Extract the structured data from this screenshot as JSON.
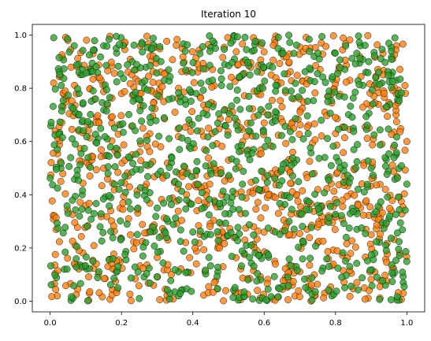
{
  "chart_data": {
    "type": "scatter",
    "title": "Iteration 10",
    "xlabel": "",
    "ylabel": "",
    "xlim": [
      -0.05,
      1.05
    ],
    "ylim": [
      -0.04,
      1.04
    ],
    "x_ticks": [
      0.0,
      0.2,
      0.4,
      0.6,
      0.8,
      1.0
    ],
    "y_ticks": [
      0.0,
      0.2,
      0.4,
      0.6,
      0.8,
      1.0
    ],
    "x_tick_labels": [
      "0.0",
      "0.2",
      "0.4",
      "0.6",
      "0.8",
      "1.0"
    ],
    "y_tick_labels": [
      "0.0",
      "0.2",
      "0.4",
      "0.6",
      "0.8",
      "1.0"
    ],
    "grid": false,
    "legend": false,
    "point_count_approx": 1800,
    "marker_edge_color": "#000000",
    "alpha": 0.8,
    "series": [
      {
        "color": "#ff7f0e",
        "points": [
          [
            0.02,
            0.02
          ],
          [
            0.05,
            0.98
          ],
          [
            0.08,
            0.64
          ],
          [
            0.1,
            0.36
          ],
          [
            0.12,
            0.93
          ],
          [
            0.15,
            0.5
          ],
          [
            0.18,
            0.12
          ],
          [
            0.2,
            0.78
          ],
          [
            0.22,
            0.31
          ],
          [
            0.24,
            0.87
          ],
          [
            0.27,
            0.44
          ],
          [
            0.29,
            0.06
          ],
          [
            0.31,
            0.58
          ],
          [
            0.33,
            0.23
          ],
          [
            0.35,
            0.71
          ],
          [
            0.37,
            0.95
          ],
          [
            0.39,
            0.37
          ],
          [
            0.41,
            0.14
          ],
          [
            0.43,
            0.62
          ],
          [
            0.46,
            0.81
          ],
          [
            0.48,
            0.29
          ],
          [
            0.5,
            0.53
          ],
          [
            0.52,
            0.04
          ],
          [
            0.54,
            0.9
          ],
          [
            0.56,
            0.41
          ],
          [
            0.58,
            0.19
          ],
          [
            0.6,
            0.67
          ],
          [
            0.62,
            0.85
          ],
          [
            0.64,
            0.33
          ],
          [
            0.66,
            0.09
          ],
          [
            0.68,
            0.56
          ],
          [
            0.7,
            0.76
          ],
          [
            0.72,
            0.27
          ],
          [
            0.74,
            0.48
          ],
          [
            0.76,
            0.97
          ],
          [
            0.78,
            0.16
          ],
          [
            0.8,
            0.63
          ],
          [
            0.82,
            0.38
          ],
          [
            0.84,
            0.83
          ],
          [
            0.86,
            0.07
          ],
          [
            0.88,
            0.52
          ],
          [
            0.9,
            0.25
          ],
          [
            0.92,
            0.74
          ],
          [
            0.94,
            0.42
          ],
          [
            0.96,
            0.91
          ],
          [
            0.98,
            0.18
          ],
          [
            1.0,
            0.6
          ],
          [
            0.03,
            0.45
          ],
          [
            0.07,
            0.21
          ],
          [
            0.13,
            0.69
          ],
          [
            0.17,
            0.34
          ],
          [
            0.23,
            0.55
          ],
          [
            0.28,
            0.92
          ],
          [
            0.34,
            0.1
          ],
          [
            0.44,
            0.47
          ],
          [
            0.49,
            0.72
          ],
          [
            0.57,
            0.99
          ],
          [
            0.63,
            0.15
          ],
          [
            0.69,
            0.4
          ],
          [
            0.75,
            0.22
          ],
          [
            0.81,
            0.88
          ],
          [
            0.87,
            0.35
          ],
          [
            0.93,
            0.59
          ],
          [
            0.99,
            0.03
          ],
          [
            0.01,
            0.82
          ],
          [
            0.11,
            0.03
          ],
          [
            0.26,
            0.65
          ],
          [
            0.36,
            0.8
          ],
          [
            0.47,
            0.2
          ],
          [
            0.55,
            0.62
          ],
          [
            0.65,
            0.73
          ],
          [
            0.73,
            0.05
          ],
          [
            0.83,
            0.45
          ],
          [
            0.91,
            0.11
          ],
          [
            0.97,
            0.78
          ]
        ]
      },
      {
        "color": "#2ca02c",
        "points": [
          [
            0.01,
            0.99
          ],
          [
            0.04,
            0.12
          ],
          [
            0.06,
            0.73
          ],
          [
            0.09,
            0.4
          ],
          [
            0.11,
            0.86
          ],
          [
            0.14,
            0.28
          ],
          [
            0.16,
            0.61
          ],
          [
            0.19,
            0.05
          ],
          [
            0.21,
            0.47
          ],
          [
            0.23,
            0.9
          ],
          [
            0.26,
            0.17
          ],
          [
            0.28,
            0.69
          ],
          [
            0.3,
            0.35
          ],
          [
            0.32,
            0.83
          ],
          [
            0.34,
            0.52
          ],
          [
            0.36,
            0.02
          ],
          [
            0.38,
            0.74
          ],
          [
            0.4,
            0.26
          ],
          [
            0.42,
            0.93
          ],
          [
            0.45,
            0.49
          ],
          [
            0.47,
            0.11
          ],
          [
            0.49,
            0.66
          ],
          [
            0.51,
            0.39
          ],
          [
            0.53,
            0.84
          ],
          [
            0.55,
            0.21
          ],
          [
            0.57,
            0.57
          ],
          [
            0.59,
            0.08
          ],
          [
            0.61,
            0.7
          ],
          [
            0.63,
            0.46
          ],
          [
            0.65,
            0.94
          ],
          [
            0.67,
            0.3
          ],
          [
            0.69,
            0.13
          ],
          [
            0.71,
            0.61
          ],
          [
            0.73,
            0.87
          ],
          [
            0.75,
            0.36
          ],
          [
            0.77,
            0.54
          ],
          [
            0.79,
            0.02
          ],
          [
            0.81,
            0.77
          ],
          [
            0.83,
            0.24
          ],
          [
            0.85,
            0.65
          ],
          [
            0.87,
            0.96
          ],
          [
            0.89,
            0.43
          ],
          [
            0.91,
            0.18
          ],
          [
            0.93,
            0.82
          ],
          [
            0.95,
            0.31
          ],
          [
            0.97,
            0.55
          ],
          [
            0.99,
            0.07
          ],
          [
            0.02,
            0.57
          ],
          [
            0.08,
            0.89
          ],
          [
            0.12,
            0.15
          ],
          [
            0.18,
            0.44
          ],
          [
            0.24,
            0.76
          ],
          [
            0.33,
            0.3
          ],
          [
            0.39,
            0.58
          ],
          [
            0.46,
            0.97
          ],
          [
            0.52,
            0.24
          ],
          [
            0.58,
            0.79
          ],
          [
            0.64,
            0.05
          ],
          [
            0.7,
            0.33
          ],
          [
            0.76,
            0.68
          ],
          [
            0.84,
            0.13
          ],
          [
            0.9,
            0.5
          ],
          [
            0.96,
            0.86
          ],
          [
            0.05,
            0.33
          ],
          [
            0.15,
            0.96
          ],
          [
            0.25,
            0.01
          ],
          [
            0.35,
            0.45
          ],
          [
            0.44,
            0.7
          ],
          [
            0.56,
            0.85
          ],
          [
            0.66,
            0.52
          ],
          [
            0.74,
            0.92
          ],
          [
            0.86,
            0.27
          ],
          [
            0.94,
            0.06
          ],
          [
            1.0,
            0.44
          ]
        ]
      }
    ]
  }
}
